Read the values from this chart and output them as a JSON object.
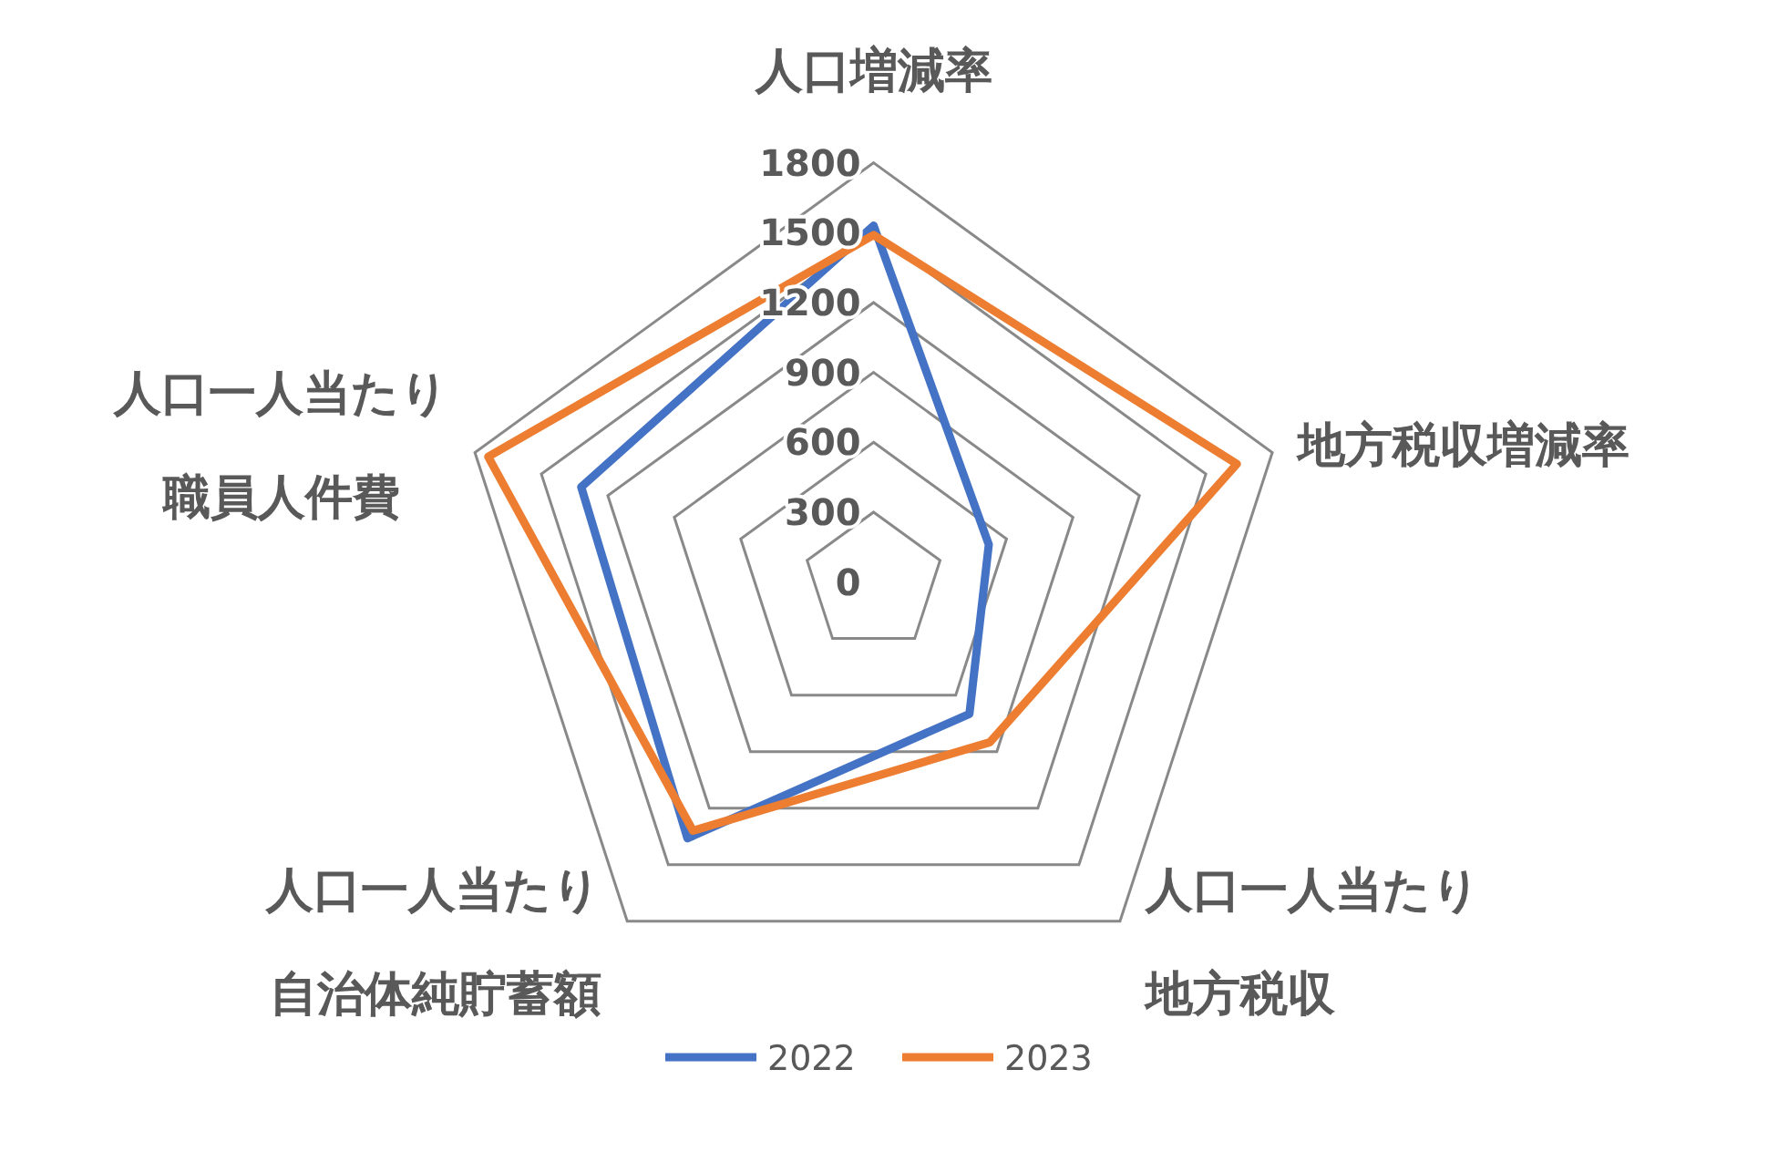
{
  "chart_data": {
    "type": "radar",
    "categories": [
      "人口増減率",
      "地方税収増減率",
      "人口一人当たり地方税収",
      "人口一人当たり自治体純貯蓄額",
      "人口一人当たり職員人件費"
    ],
    "series": [
      {
        "name": "2022",
        "color": "#4472c4",
        "values": [
          1530,
          520,
          700,
          1360,
          1320
        ]
      },
      {
        "name": "2023",
        "color": "#ed7d31",
        "values": [
          1490,
          1640,
          850,
          1320,
          1740
        ]
      }
    ],
    "ylim": [
      0,
      1800
    ],
    "yticks": [
      0,
      300,
      600,
      900,
      1200,
      1500,
      1800
    ],
    "legend": "bottom",
    "grid": true,
    "marker": "none",
    "line_style": "solid"
  }
}
